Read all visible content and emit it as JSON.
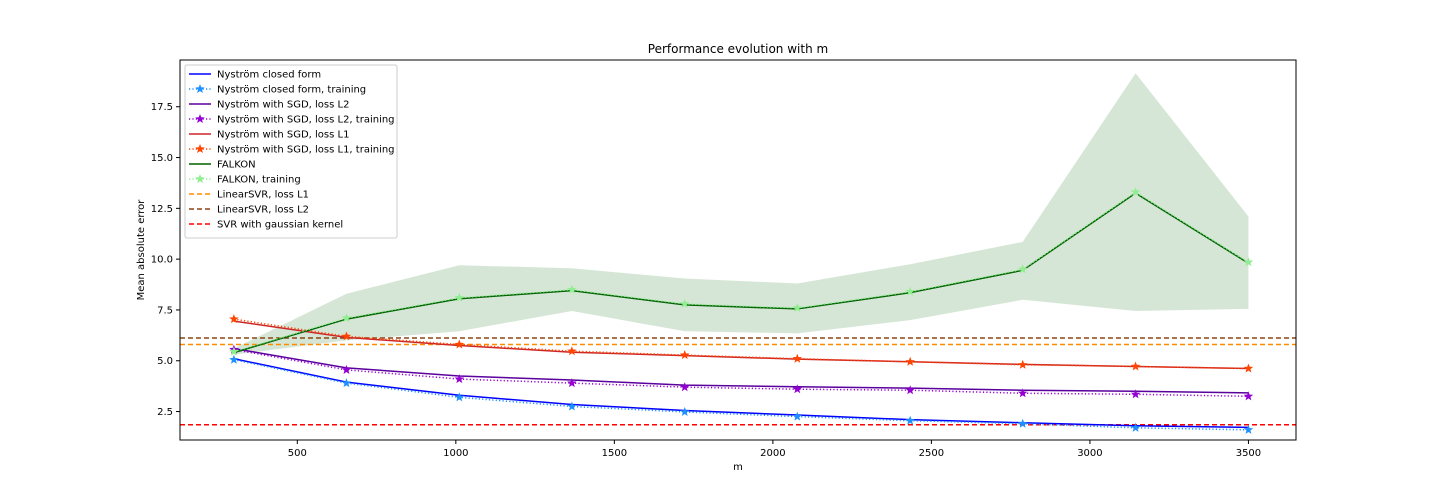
{
  "chart_data": {
    "type": "line",
    "title": "Performance evolution with m",
    "xlabel": "m",
    "ylabel": "Mean absolute error",
    "xlim": [
      130,
      3650
    ],
    "ylim": [
      1.1,
      19.8
    ],
    "xticks": [
      "500",
      "1000",
      "1500",
      "2000",
      "2500",
      "3000",
      "3500"
    ],
    "yticks": [
      "2.5",
      "5.0",
      "7.5",
      "10.0",
      "12.5",
      "15.0",
      "17.5"
    ],
    "grid": false,
    "legend_position": "top-left",
    "x": [
      300,
      655,
      1011,
      1366,
      1722,
      2077,
      2433,
      2788,
      3144,
      3500
    ],
    "series": [
      {
        "name": "Nyström closed form",
        "color": "#0000ff",
        "style": "solid",
        "marker": "none",
        "values": [
          5.1,
          3.95,
          3.3,
          2.85,
          2.55,
          2.33,
          2.1,
          1.95,
          1.8,
          1.72
        ]
      },
      {
        "name": "Nyström closed form, training",
        "color": "#1e90ff",
        "style": "dotted",
        "marker": "star",
        "values": [
          5.05,
          3.9,
          3.2,
          2.75,
          2.48,
          2.25,
          2.05,
          1.9,
          1.7,
          1.6
        ]
      },
      {
        "name": "Nyström with SGD, loss L2",
        "color": "#5a009d",
        "style": "solid",
        "marker": "none",
        "values": [
          5.6,
          4.65,
          4.25,
          4.05,
          3.8,
          3.72,
          3.65,
          3.55,
          3.5,
          3.42
        ]
      },
      {
        "name": "Nyström with SGD, loss L2, training",
        "color": "#9400d3",
        "style": "dotted",
        "marker": "star",
        "values": [
          5.55,
          4.55,
          4.1,
          3.9,
          3.7,
          3.6,
          3.55,
          3.4,
          3.35,
          3.25
        ]
      },
      {
        "name": "Nyström with SGD, loss L1",
        "color": "#cd2626",
        "style": "solid",
        "marker": "none",
        "values": [
          6.95,
          6.15,
          5.75,
          5.42,
          5.25,
          5.08,
          4.95,
          4.82,
          4.72,
          4.62
        ]
      },
      {
        "name": "Nyström with SGD, loss L1, training",
        "color": "#ff4500",
        "style": "dotted",
        "marker": "star",
        "values": [
          7.05,
          6.2,
          5.8,
          5.47,
          5.28,
          5.1,
          4.95,
          4.8,
          4.72,
          4.62
        ]
      },
      {
        "name": "FALKON",
        "color": "#006400",
        "style": "solid",
        "marker": "none",
        "values": [
          5.4,
          7.05,
          8.05,
          8.45,
          7.75,
          7.55,
          8.35,
          9.45,
          13.25,
          9.8
        ]
      },
      {
        "name": "FALKON, training",
        "color": "#90ee90",
        "style": "dotted",
        "marker": "star",
        "values": [
          5.45,
          7.1,
          8.1,
          8.5,
          7.8,
          7.6,
          8.4,
          9.5,
          13.3,
          9.85
        ]
      }
    ],
    "band": {
      "series": "FALKON",
      "color": "#006400",
      "opacity": 0.16,
      "upper": [
        5.6,
        8.3,
        9.7,
        9.55,
        9.05,
        8.8,
        9.75,
        10.85,
        19.15,
        12.1
      ],
      "lower": [
        5.3,
        6.0,
        6.45,
        7.45,
        6.45,
        6.35,
        7.0,
        8.0,
        7.45,
        7.55
      ]
    },
    "hlines": [
      {
        "name": "LinearSVR, loss L1",
        "color": "#ff8c00",
        "y": 5.8
      },
      {
        "name": "LinearSVR, loss L2",
        "color": "#8b4513",
        "y": 6.12
      },
      {
        "name": "SVR with gaussian kernel",
        "color": "#ff0000",
        "y": 1.85
      }
    ]
  }
}
